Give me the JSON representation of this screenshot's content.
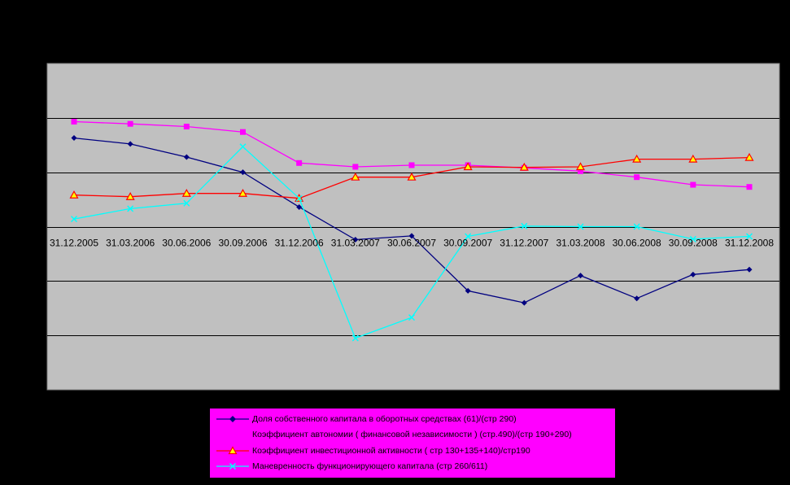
{
  "colors": {
    "background": "#000000",
    "plot_area": "#c0c0c0",
    "gridline": "#000000",
    "legend_background": "#ff00ff"
  },
  "chart_data": {
    "type": "line",
    "categories": [
      "31.12.2005",
      "31.03.2006",
      "30.06.2006",
      "30.09.2006",
      "31.12.2006",
      "31.03.2007",
      "30.06.2007",
      "30.09.2007",
      "31.12.2007",
      "31.03.2008",
      "30.06.2008",
      "30.09.2008",
      "31.12.2008"
    ],
    "ylim": [
      -3,
      3
    ],
    "yticks": [
      -3,
      -2,
      -1,
      0,
      1,
      2,
      3
    ],
    "grid": true,
    "legend_position": "bottom",
    "series": [
      {
        "name": "Доля собственного капитала в оборотных средствах  (61)/(стр 290)",
        "color": "#000080",
        "marker": "diamond",
        "values": [
          1.63,
          1.52,
          1.28,
          1.0,
          0.36,
          -0.24,
          -0.17,
          -1.18,
          -1.4,
          -0.9,
          -1.32,
          -0.88,
          -0.79
        ]
      },
      {
        "name": "Коэффициент автономии ( финансовой независимости ) (стр.490)/(стр 190+290)",
        "color": "#ff00ff",
        "marker": "square",
        "values": [
          1.93,
          1.89,
          1.84,
          1.74,
          1.17,
          1.1,
          1.13,
          1.13,
          1.08,
          1.02,
          0.91,
          0.77,
          0.73
        ]
      },
      {
        "name": "Коэффициент инвестиционной активности ( стр 130+135+140)/стр190",
        "color": "#ff0000",
        "marker": "triangle",
        "values": [
          0.58,
          0.55,
          0.61,
          0.61,
          0.52,
          0.91,
          0.91,
          1.1,
          1.09,
          1.1,
          1.24,
          1.24,
          1.27
        ]
      },
      {
        "name": "Маневренность функционирующего капитала (стр 260/611)",
        "color": "#00ffff",
        "marker": "x",
        "values": [
          0.14,
          0.33,
          0.43,
          1.47,
          0.52,
          -2.05,
          -1.67,
          -0.18,
          0.01,
          0.0,
          0.0,
          -0.23,
          -0.18
        ]
      }
    ]
  }
}
